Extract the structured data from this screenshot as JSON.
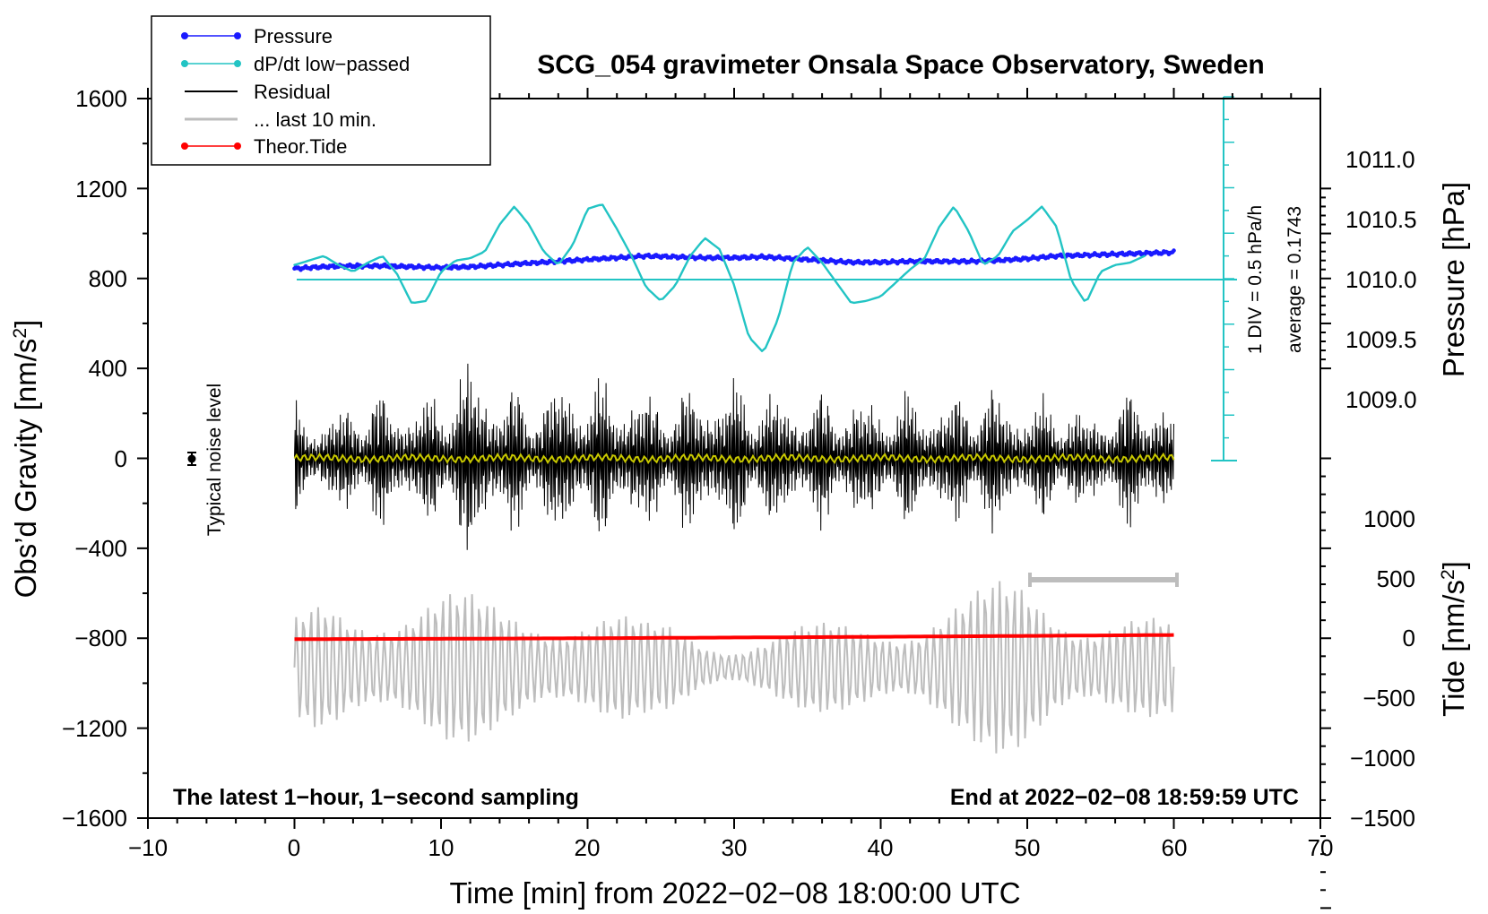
{
  "chart_data": {
    "type": "line",
    "title": "SCG_054 gravimeter Onsala Space Observatory, Sweden",
    "xlabel": "Time [min] from 2022−02−08 18:00:00 UTC",
    "ylabel_left": "Obs’d Gravity [nm/s",
    "ylabel_right_top": "Pressure [hPa]",
    "ylabel_right_bottom": "Tide [nm/s",
    "superscript": "2",
    "closing_bracket": "]",
    "xlim": [
      -10,
      70
    ],
    "ylim": [
      -1600,
      1600
    ],
    "x_ticks": [
      "−10",
      "0",
      "10",
      "20",
      "30",
      "40",
      "50",
      "60",
      "70"
    ],
    "y_ticks": [
      "1600",
      "1200",
      "800",
      "400",
      "0",
      "−400",
      "−800",
      "−1200",
      "−1600"
    ],
    "pressure_axis": {
      "range": [
        1009.0,
        1011.0
      ],
      "ticks": [
        "1011.0",
        "1010.5",
        "1010.0",
        "1009.5",
        "1009.0"
      ]
    },
    "tide_axis": {
      "range": [
        -1500,
        1000
      ],
      "ticks": [
        "1000",
        "500",
        "0",
        "−500",
        "−1000",
        "−1500"
      ]
    },
    "legend": [
      {
        "label": "Pressure",
        "color": "#1a1aff",
        "marker": "dot"
      },
      {
        "label": "dP/dt low−passed",
        "color": "#22c4c4",
        "marker": "dot"
      },
      {
        "label": "Residual",
        "color": "#000000",
        "marker": "line"
      },
      {
        "label": "... last 10 min.",
        "color": "#bdbdbd",
        "marker": "line"
      },
      {
        "label": "Theor.Tide",
        "color": "#ff0000",
        "marker": "dot"
      }
    ],
    "annotations": {
      "noise_label": "Typical noise level",
      "div_label": "1 DIV = 0.5 hPa/h",
      "average_label": "average = 0.1743",
      "footer_left": "The latest 1−hour, 1−second sampling",
      "footer_right": "End at 2022−02−08 18:59:59 UTC"
    },
    "series": [
      {
        "name": "Pressure",
        "units": "hPa",
        "x": [
          0,
          2,
          4,
          6,
          8,
          10,
          12,
          14,
          16,
          18,
          20,
          22,
          24,
          26,
          28,
          30,
          32,
          34,
          36,
          38,
          40,
          42,
          44,
          46,
          48,
          50,
          52,
          54,
          56,
          58,
          60
        ],
        "values": [
          1010.11,
          1010.13,
          1010.14,
          1010.14,
          1010.13,
          1010.12,
          1010.13,
          1010.15,
          1010.17,
          1010.19,
          1010.21,
          1010.23,
          1010.25,
          1010.24,
          1010.23,
          1010.23,
          1010.24,
          1010.22,
          1010.2,
          1010.18,
          1010.18,
          1010.19,
          1010.19,
          1010.19,
          1010.2,
          1010.22,
          1010.25,
          1010.26,
          1010.27,
          1010.28,
          1010.29
        ]
      },
      {
        "name": "dP/dt low−passed",
        "units": "gravity-axis units",
        "x": [
          0,
          1,
          2,
          3,
          4,
          5,
          6,
          7,
          8,
          9,
          10,
          11,
          12,
          13,
          14,
          15,
          16,
          17,
          18,
          19,
          20,
          21,
          22,
          23,
          24,
          25,
          26,
          27,
          28,
          29,
          30,
          31,
          32,
          33,
          34,
          35,
          36,
          37,
          38,
          39,
          40,
          41,
          42,
          43,
          44,
          45,
          46,
          47,
          48,
          49,
          50,
          51,
          52,
          53,
          54,
          55,
          56,
          57,
          58
        ],
        "values": [
          860,
          880,
          900,
          860,
          830,
          870,
          900,
          820,
          690,
          700,
          830,
          880,
          890,
          920,
          1040,
          1120,
          1040,
          920,
          860,
          950,
          1110,
          1130,
          1020,
          900,
          760,
          700,
          770,
          900,
          980,
          930,
          770,
          540,
          470,
          620,
          870,
          940,
          870,
          780,
          690,
          700,
          720,
          780,
          840,
          890,
          1030,
          1120,
          1010,
          860,
          900,
          1010,
          1060,
          1120,
          1030,
          790,
          690,
          830,
          860,
          870,
          900
        ]
      },
      {
        "name": "Residual",
        "units": "nm/s²",
        "x": [
          0,
          2,
          4,
          6,
          8,
          10,
          12,
          14,
          16,
          18,
          20,
          22,
          24,
          26,
          28,
          30,
          32,
          34,
          36,
          38,
          40,
          42,
          44,
          46,
          48,
          50,
          52,
          54,
          56,
          58,
          60
        ],
        "envelope": [
          270,
          210,
          320,
          340,
          300,
          340,
          520,
          380,
          330,
          410,
          400,
          390,
          350,
          340,
          390,
          400,
          360,
          320,
          330,
          330,
          310,
          330,
          310,
          370,
          360,
          280,
          320,
          240,
          300,
          380,
          250
        ]
      },
      {
        "name": "... last 10 min.",
        "units": "nm/s²",
        "x": [
          0,
          2,
          4,
          6,
          8,
          10,
          12,
          14,
          16,
          18,
          20,
          22,
          24,
          26,
          28,
          30,
          32,
          34,
          36,
          38,
          40,
          42,
          44,
          46,
          48,
          50,
          52,
          54,
          56,
          58,
          60
        ],
        "envelope": [
          220,
          320,
          340,
          390,
          370,
          360,
          330,
          300,
          320,
          340,
          300,
          260,
          200,
          210,
          160,
          140,
          170,
          190,
          200,
          220,
          250,
          290,
          330,
          340,
          390,
          420,
          390,
          320,
          280,
          240,
          200
        ]
      },
      {
        "name": "Theor.Tide",
        "units": "nm/s²",
        "x": [
          0,
          10,
          20,
          30,
          40,
          50,
          60
        ],
        "values": [
          -5,
          -3,
          0,
          4,
          8,
          13,
          18
        ]
      }
    ]
  }
}
